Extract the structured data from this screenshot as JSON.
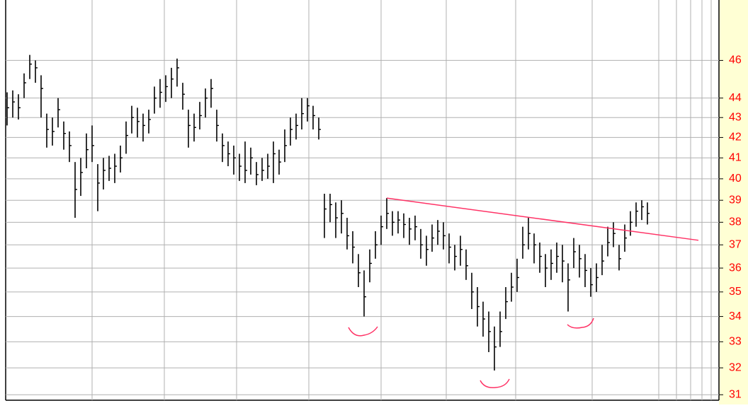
{
  "chart_data": {
    "type": "ohlc",
    "log_scale": true,
    "grid": true,
    "color": "#000000",
    "ylim": [
      30.8,
      49.4
    ],
    "yticks": [
      31,
      32,
      33,
      34,
      35,
      36,
      37,
      38,
      39,
      40,
      41,
      42,
      43,
      44,
      46
    ],
    "tick_label_color": "#ff0000",
    "high": [
      44.3,
      44.4,
      44.2,
      45.3,
      46.3,
      46,
      45.2,
      43.2,
      43,
      44,
      42.8,
      42.3,
      40.8,
      41,
      42.2,
      42.6,
      40.7,
      41,
      41.1,
      41.2,
      41.6,
      42.8,
      43.6,
      43.5,
      43.2,
      43.4,
      44.6,
      45,
      45.2,
      45.6,
      46.1,
      44.8,
      43.4,
      43.2,
      43.8,
      44.5,
      45,
      43.4,
      42.2,
      41.8,
      41.6,
      41.2,
      41.8,
      41.5,
      40.8,
      41,
      41.2,
      41.8,
      41.4,
      42.4,
      43,
      43.2,
      44,
      44,
      43.6,
      43,
      39.3,
      39.3,
      38.9,
      39,
      38.2,
      37.6,
      36.6,
      35.9,
      36.8,
      37.6,
      38.3,
      39.1,
      38.5,
      38.5,
      38.4,
      38.2,
      38.3,
      37.7,
      37.4,
      37.9,
      38.1,
      38,
      37.5,
      37,
      37.4,
      36.8,
      35.8,
      35.2,
      34.6,
      34.2,
      33.6,
      34.2,
      35.2,
      35.8,
      36.4,
      37.8,
      38.2,
      37.5,
      37.1,
      36.6,
      36.8,
      37.1,
      37,
      36.2,
      37.3,
      37,
      36.6,
      36,
      36.2,
      37,
      37.8,
      38,
      37,
      37.9,
      38.5,
      38.9,
      39,
      38.9
    ],
    "low": [
      42.6,
      43,
      42.9,
      44,
      45,
      44.8,
      43,
      41.5,
      41.6,
      42.5,
      41.4,
      40.8,
      38.2,
      39.2,
      40.5,
      40.8,
      38.5,
      39.5,
      39.9,
      39.8,
      40.3,
      41.2,
      42.2,
      42,
      41.8,
      42.2,
      43.2,
      43.5,
      43.8,
      44,
      44.6,
      43.4,
      41.5,
      41.8,
      42.4,
      43,
      43.5,
      41.8,
      40.8,
      40.6,
      40.2,
      39.9,
      39.8,
      40.2,
      39.7,
      39.9,
      40,
      39.8,
      40.2,
      40.8,
      41.6,
      41.9,
      42.4,
      42.8,
      42.4,
      41.9,
      37.3,
      38,
      37.3,
      37.5,
      36.8,
      36.2,
      35.2,
      34,
      35.4,
      36.4,
      37,
      37.7,
      37.4,
      37.5,
      37.3,
      37,
      37.2,
      36.4,
      36.1,
      36.7,
      37,
      36.8,
      36.2,
      35.9,
      36.1,
      35.5,
      34.3,
      33.6,
      33.2,
      32.6,
      31.9,
      32.8,
      33.9,
      34.6,
      35,
      36.4,
      36.8,
      36.2,
      35.8,
      35.2,
      35.5,
      35.8,
      35.4,
      34.2,
      36,
      35.6,
      35.2,
      34.8,
      35,
      35.7,
      36.5,
      36.9,
      35.9,
      36.7,
      37.4,
      37.8,
      38.1,
      37.9
    ],
    "close": [
      43.5,
      43.8,
      43.5,
      44.8,
      45.8,
      45.6,
      44.5,
      42.4,
      42.3,
      43.4,
      42.2,
      41.6,
      39.5,
      40.3,
      41.4,
      41.6,
      39.8,
      40.4,
      40.5,
      40.6,
      41,
      42.1,
      43,
      42.8,
      42.6,
      42.9,
      44,
      44.3,
      44.6,
      45,
      45.6,
      44.2,
      42.6,
      42.5,
      43.1,
      44,
      44.5,
      42.6,
      41.6,
      41.2,
      41,
      40.6,
      40.4,
      41,
      40.2,
      40.4,
      40.6,
      41.2,
      40.8,
      41.6,
      42.4,
      42.6,
      43.2,
      43.6,
      43.1,
      42.4,
      38.6,
      38.8,
      38.2,
      38.4,
      37.4,
      36.9,
      35.8,
      34.8,
      36.2,
      37,
      37.8,
      38.4,
      38,
      38.1,
      37.9,
      37.7,
      37.8,
      37,
      36.8,
      37.3,
      37.6,
      37.4,
      36.9,
      36.5,
      36.8,
      36.1,
      35,
      34.4,
      33.9,
      33.4,
      32.8,
      33.4,
      34.6,
      35.2,
      35.6,
      37,
      37.5,
      37,
      36.5,
      36,
      36.2,
      36.5,
      36.3,
      35.5,
      36.7,
      36.4,
      35.9,
      35.3,
      35.6,
      36.3,
      37.1,
      37.5,
      36.4,
      37.3,
      38,
      38.5,
      38.7,
      38.4
    ],
    "trendline": {
      "color": "#ff3366",
      "start": {
        "index": 67,
        "value": 39.1
      },
      "end": {
        "index": 122,
        "value": 37.2
      }
    }
  }
}
